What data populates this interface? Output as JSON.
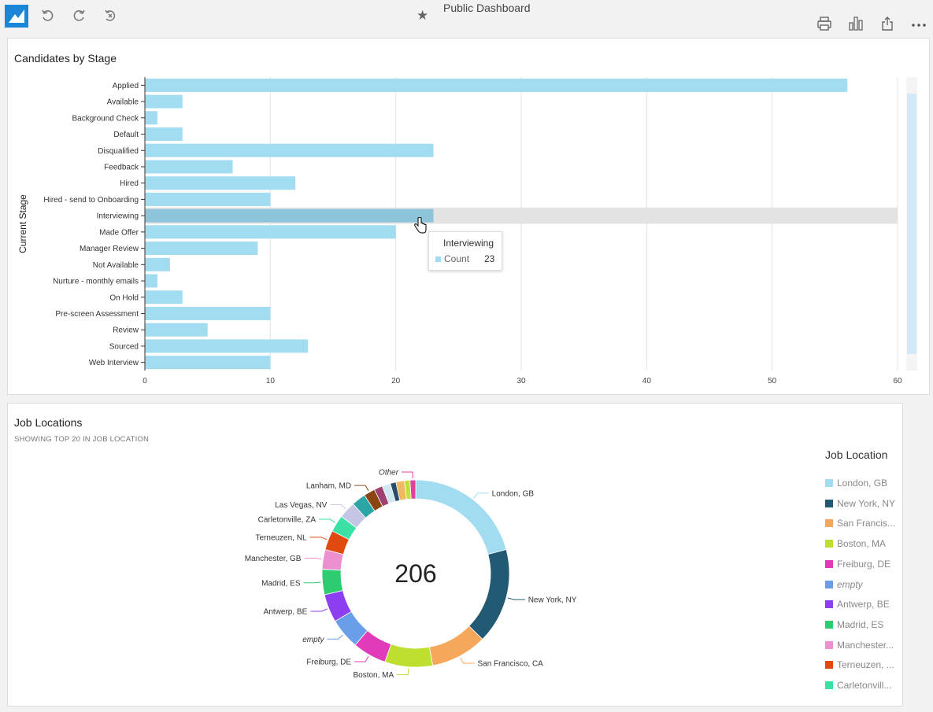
{
  "header": {
    "title": "Public Dashboard"
  },
  "bar_panel": {
    "title": "Candidates by Stage"
  },
  "donut_panel": {
    "title": "Job Locations",
    "subtitle": "SHOWING TOP 20 IN JOB LOCATION",
    "center_total": "206",
    "legend_title": "Job Location",
    "legend_items": [
      {
        "label": "London, GB",
        "color": "#a1dcf0"
      },
      {
        "label": "New York, NY",
        "color": "#235a73"
      },
      {
        "label": "San Francis...",
        "color": "#f5a85c"
      },
      {
        "label": "Boston, MA",
        "color": "#bde030"
      },
      {
        "label": "Freiburg, DE",
        "color": "#e23bb9"
      },
      {
        "label": "empty",
        "color": "#6b9ee8"
      },
      {
        "label": "Antwerp, BE",
        "color": "#8d3ef0"
      },
      {
        "label": "Madrid, ES",
        "color": "#2ecc71"
      },
      {
        "label": "Manchester...",
        "color": "#ec90cf"
      },
      {
        "label": "Terneuzen, ...",
        "color": "#e04a10"
      },
      {
        "label": "Carletonvill...",
        "color": "#3be0a4"
      }
    ]
  },
  "tooltip": {
    "title": "Interviewing",
    "label": "Count",
    "value": "23"
  },
  "chart_data": [
    {
      "type": "bar",
      "orientation": "horizontal",
      "title": "Candidates by Stage",
      "ylabel": "Current Stage",
      "xlabel": "",
      "xlim": [
        0,
        60
      ],
      "xticks": [
        "0",
        "10",
        "20",
        "30",
        "40",
        "50",
        "60"
      ],
      "grid": true,
      "bar_color": "#a1dcf0",
      "highlight_color": "#8ec4d9",
      "highlighted": "Interviewing",
      "categories": [
        "Applied",
        "Available",
        "Background Check",
        "Default",
        "Disqualified",
        "Feedback",
        "Hired",
        "Hired - send to Onboarding",
        "Interviewing",
        "Made Offer",
        "Manager Review",
        "Not Available",
        "Nurture - monthly emails",
        "On Hold",
        "Pre-screen Assessment",
        "Review",
        "Sourced",
        "Web Interview"
      ],
      "values": [
        56,
        3,
        1,
        3,
        23,
        7,
        12,
        10,
        23,
        20,
        9,
        2,
        1,
        3,
        10,
        5,
        13,
        10
      ]
    },
    {
      "type": "pie",
      "donut": true,
      "title": "Job Locations",
      "total": 206,
      "slices": [
        {
          "label": "London, GB",
          "value": 43,
          "color": "#a1dcf0"
        },
        {
          "label": "New York, NY",
          "value": 34,
          "color": "#235a73"
        },
        {
          "label": "San Francisco, CA",
          "value": 20,
          "color": "#f5a85c"
        },
        {
          "label": "Boston, MA",
          "value": 17,
          "color": "#bde030"
        },
        {
          "label": "Freiburg, DE",
          "value": 12,
          "color": "#e23bb9"
        },
        {
          "label": "empty",
          "value": 11,
          "color": "#6b9ee8",
          "italic": true
        },
        {
          "label": "Antwerp, BE",
          "value": 10,
          "color": "#8d3ef0"
        },
        {
          "label": "Madrid, ES",
          "value": 9,
          "color": "#2ecc71"
        },
        {
          "label": "Manchester, GB",
          "value": 7,
          "color": "#ec90cf"
        },
        {
          "label": "Terneuzen, NL",
          "value": 7,
          "color": "#e04a10"
        },
        {
          "label": "Carletonville, ZA",
          "value": 6,
          "color": "#3be0a4"
        },
        {
          "label": "Las Vegas, NV",
          "value": 6,
          "color": "#c5c5e5"
        },
        {
          "label": "",
          "value": 5,
          "color": "#2ba5a5"
        },
        {
          "label": "Lanham, MD",
          "value": 4,
          "color": "#8b4513"
        },
        {
          "label": "",
          "value": 3,
          "color": "#a04070"
        },
        {
          "label": "",
          "value": 3,
          "color": "#cfe8f0"
        },
        {
          "label": "",
          "value": 2,
          "color": "#2a4a6a"
        },
        {
          "label": "",
          "value": 3,
          "color": "#f0b860"
        },
        {
          "label": "",
          "value": 2,
          "color": "#c0e040"
        },
        {
          "label": "Other",
          "value": 2,
          "color": "#e0409e",
          "italic": true
        }
      ]
    }
  ]
}
